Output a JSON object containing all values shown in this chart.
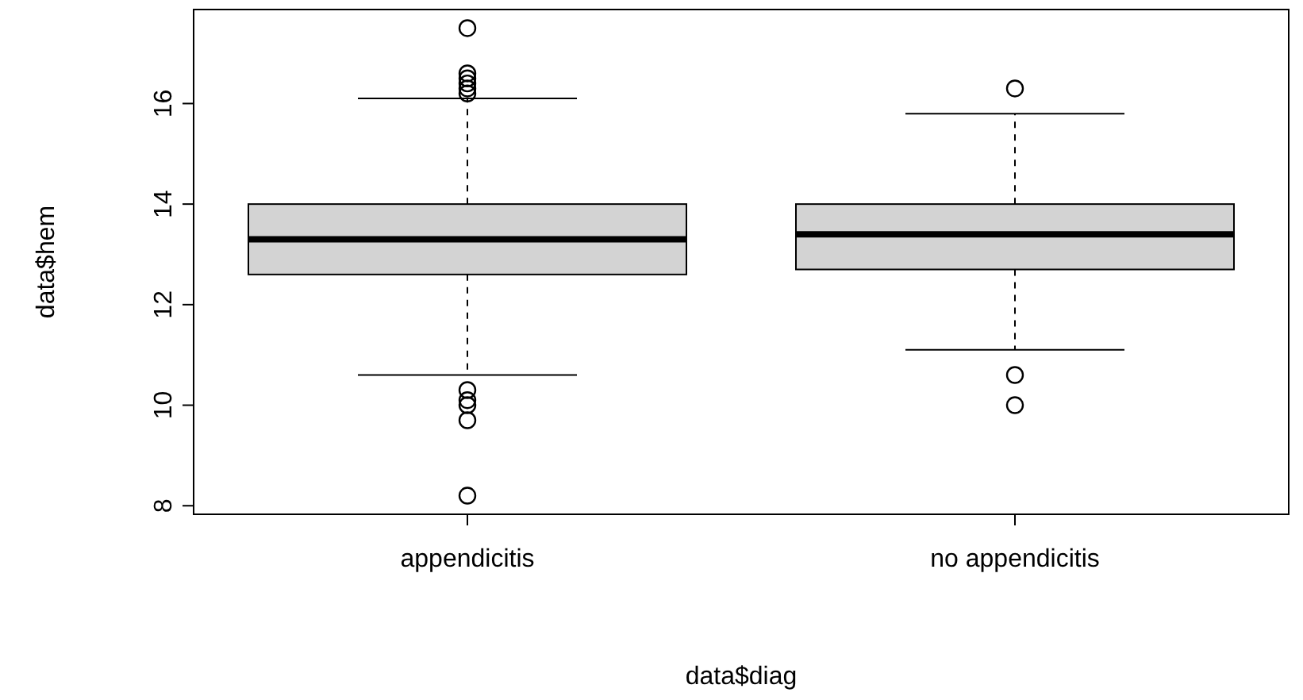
{
  "chart_data": {
    "type": "box",
    "xlabel": "data$diag",
    "ylabel": "data$hem",
    "categories": [
      "appendicitis",
      "no appendicitis"
    ],
    "color": "#d3d3d3",
    "boxes": [
      {
        "low": 10.6,
        "q1": 12.6,
        "median": 13.3,
        "q3": 14.0,
        "high": 16.1,
        "outliers": [
          17.5,
          16.6,
          16.5,
          16.4,
          16.3,
          16.2,
          10.3,
          10.1,
          10.0,
          9.7,
          8.2
        ]
      },
      {
        "low": 11.1,
        "q1": 12.7,
        "median": 13.4,
        "q3": 14.0,
        "high": 15.8,
        "outliers": [
          16.3,
          10.6,
          10.0
        ]
      }
    ],
    "ylim": [
      7.83,
      17.87
    ],
    "yticks": [
      8,
      10,
      12,
      14,
      16
    ],
    "grid": false
  }
}
